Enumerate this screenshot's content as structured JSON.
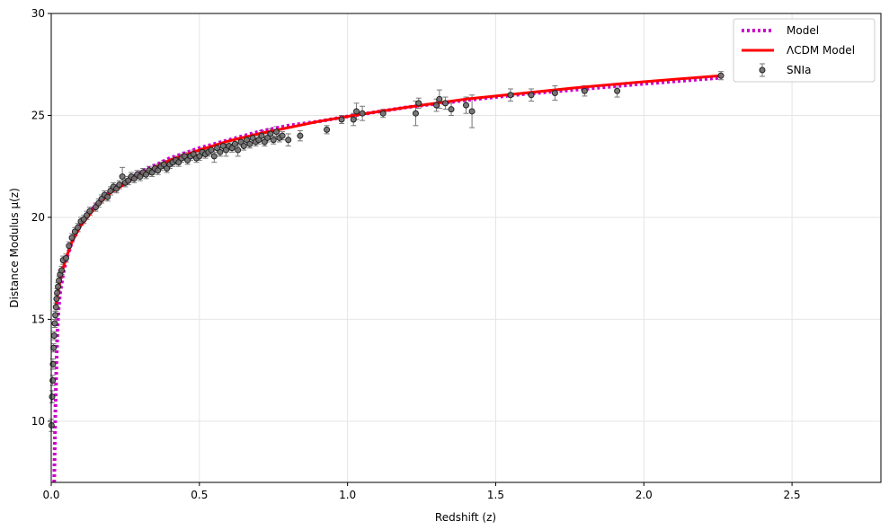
{
  "chart_data": {
    "type": "scatter",
    "title": "",
    "xlabel": "Redshift (z)",
    "ylabel": "Distance Modulus μ(z)",
    "xlim": [
      0,
      2.8
    ],
    "ylim": [
      7,
      30
    ],
    "xticks": [
      0.0,
      0.5,
      1.0,
      1.5,
      2.0,
      2.5
    ],
    "xtick_labels": [
      "0.0",
      "0.5",
      "1.0",
      "1.5",
      "2.0",
      "2.5"
    ],
    "yticks": [
      10,
      15,
      20,
      25,
      30
    ],
    "ytick_labels": [
      "10",
      "15",
      "20",
      "25",
      "30"
    ],
    "grid": true,
    "legend_position": "top-right",
    "legend": [
      {
        "label": "Model",
        "style": "dotted",
        "color": "#cc00cc"
      },
      {
        "label": "ΛCDM  Model",
        "style": "solid",
        "color": "#ff0000"
      },
      {
        "label": "SNIa",
        "style": "marker-errorbar",
        "color": "#555555"
      }
    ],
    "series": [
      {
        "name": "Model",
        "kind": "line",
        "style": "dotted",
        "color": "#cc00cc",
        "x": [
          0.01,
          0.012,
          0.014,
          0.016,
          0.018,
          0.02,
          0.022,
          0.025,
          0.03,
          0.04,
          0.05,
          0.07,
          0.1,
          0.15,
          0.2,
          0.3,
          0.4,
          0.5,
          0.6,
          0.7,
          0.8,
          0.9,
          1.0,
          1.2,
          1.4,
          1.6,
          1.8,
          2.0,
          2.26
        ],
        "y": [
          7.0,
          9.0,
          10.5,
          11.8,
          13.0,
          14.0,
          14.8,
          15.5,
          16.3,
          17.2,
          17.9,
          18.8,
          19.7,
          20.6,
          21.3,
          22.2,
          22.9,
          23.4,
          23.8,
          24.2,
          24.5,
          24.7,
          24.95,
          25.4,
          25.75,
          26.05,
          26.3,
          26.55,
          26.85
        ]
      },
      {
        "name": "ΛCDM  Model",
        "kind": "line",
        "style": "solid",
        "color": "#ff0000",
        "x": [
          0.015,
          0.02,
          0.03,
          0.04,
          0.05,
          0.07,
          0.1,
          0.15,
          0.2,
          0.3,
          0.4,
          0.5,
          0.6,
          0.7,
          0.8,
          0.9,
          1.0,
          1.2,
          1.4,
          1.6,
          1.8,
          2.0,
          2.26
        ],
        "y": [
          15.6,
          16.1,
          16.9,
          17.5,
          18.0,
          18.8,
          19.6,
          20.5,
          21.2,
          22.1,
          22.8,
          23.3,
          23.75,
          24.1,
          24.4,
          24.7,
          24.95,
          25.4,
          25.8,
          26.1,
          26.4,
          26.65,
          26.95
        ]
      },
      {
        "name": "SNIa",
        "kind": "errorbar",
        "color": "#555555",
        "x": [
          0.001,
          0.003,
          0.005,
          0.006,
          0.008,
          0.01,
          0.012,
          0.014,
          0.016,
          0.018,
          0.02,
          0.023,
          0.026,
          0.03,
          0.035,
          0.04,
          0.05,
          0.06,
          0.07,
          0.08,
          0.09,
          0.1,
          0.11,
          0.12,
          0.13,
          0.15,
          0.16,
          0.17,
          0.18,
          0.19,
          0.2,
          0.21,
          0.22,
          0.23,
          0.24,
          0.25,
          0.26,
          0.27,
          0.28,
          0.29,
          0.3,
          0.31,
          0.32,
          0.33,
          0.34,
          0.35,
          0.36,
          0.37,
          0.38,
          0.39,
          0.4,
          0.41,
          0.42,
          0.43,
          0.44,
          0.45,
          0.46,
          0.47,
          0.48,
          0.49,
          0.5,
          0.51,
          0.52,
          0.53,
          0.54,
          0.55,
          0.56,
          0.57,
          0.58,
          0.59,
          0.6,
          0.61,
          0.62,
          0.63,
          0.64,
          0.65,
          0.66,
          0.67,
          0.68,
          0.69,
          0.7,
          0.71,
          0.72,
          0.73,
          0.74,
          0.75,
          0.76,
          0.77,
          0.78,
          0.8,
          0.84,
          0.93,
          0.98,
          1.02,
          1.03,
          1.05,
          1.12,
          1.23,
          1.24,
          1.3,
          1.31,
          1.33,
          1.35,
          1.4,
          1.42,
          1.55,
          1.62,
          1.7,
          1.8,
          1.91,
          2.26
        ],
        "y": [
          9.8,
          11.2,
          12.0,
          12.8,
          13.6,
          14.2,
          14.8,
          15.2,
          15.6,
          16.0,
          16.3,
          16.6,
          16.9,
          17.2,
          17.4,
          17.9,
          18.0,
          18.6,
          19.0,
          19.3,
          19.5,
          19.8,
          19.9,
          20.1,
          20.3,
          20.5,
          20.7,
          20.9,
          21.1,
          21.0,
          21.3,
          21.5,
          21.4,
          21.6,
          22.0,
          21.7,
          21.8,
          22.0,
          21.9,
          22.1,
          22.0,
          22.2,
          22.1,
          22.3,
          22.2,
          22.4,
          22.3,
          22.5,
          22.6,
          22.4,
          22.6,
          22.7,
          22.8,
          22.7,
          22.9,
          23.0,
          22.8,
          23.0,
          23.1,
          22.9,
          23.0,
          23.2,
          23.1,
          23.2,
          23.3,
          23.0,
          23.4,
          23.2,
          23.5,
          23.3,
          23.5,
          23.4,
          23.6,
          23.3,
          23.7,
          23.5,
          23.8,
          23.6,
          23.9,
          23.7,
          23.8,
          24.0,
          23.7,
          23.9,
          24.1,
          23.8,
          24.2,
          23.9,
          24.0,
          23.8,
          24.0,
          24.3,
          24.8,
          24.8,
          25.2,
          25.1,
          25.1,
          25.1,
          25.6,
          25.5,
          25.8,
          25.6,
          25.3,
          25.5,
          25.2,
          26.0,
          26.0,
          26.1,
          26.2,
          26.2,
          26.95
        ],
        "err": [
          0.3,
          0.3,
          0.25,
          0.25,
          0.2,
          0.2,
          0.2,
          0.2,
          0.2,
          0.2,
          0.2,
          0.2,
          0.2,
          0.2,
          0.2,
          0.2,
          0.2,
          0.2,
          0.2,
          0.2,
          0.2,
          0.2,
          0.2,
          0.2,
          0.2,
          0.2,
          0.2,
          0.2,
          0.2,
          0.2,
          0.2,
          0.2,
          0.2,
          0.2,
          0.45,
          0.2,
          0.2,
          0.2,
          0.2,
          0.2,
          0.2,
          0.2,
          0.2,
          0.2,
          0.2,
          0.2,
          0.2,
          0.2,
          0.2,
          0.2,
          0.2,
          0.2,
          0.2,
          0.2,
          0.2,
          0.2,
          0.2,
          0.2,
          0.2,
          0.2,
          0.2,
          0.2,
          0.2,
          0.2,
          0.2,
          0.3,
          0.2,
          0.2,
          0.2,
          0.3,
          0.2,
          0.2,
          0.2,
          0.3,
          0.2,
          0.2,
          0.2,
          0.2,
          0.2,
          0.2,
          0.2,
          0.25,
          0.2,
          0.2,
          0.25,
          0.2,
          0.25,
          0.2,
          0.2,
          0.3,
          0.25,
          0.2,
          0.2,
          0.3,
          0.4,
          0.35,
          0.2,
          0.6,
          0.25,
          0.3,
          0.45,
          0.3,
          0.3,
          0.4,
          0.8,
          0.3,
          0.3,
          0.35,
          0.25,
          0.3,
          0.2
        ]
      }
    ]
  }
}
